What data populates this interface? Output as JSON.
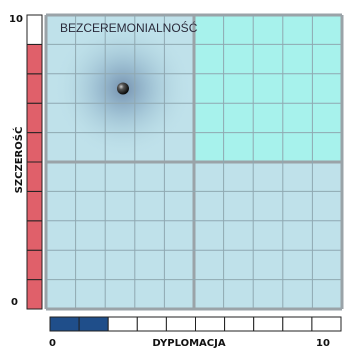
{
  "chart_data": {
    "type": "scatter",
    "title": "BEZCEREMONIALNOŚĆ",
    "xlabel": "DYPLOMACJA",
    "ylabel": "SZCZEROŚĆ",
    "xlim": [
      0,
      10
    ],
    "ylim": [
      0,
      10
    ],
    "x_tick_labels": [
      "0",
      "10"
    ],
    "y_tick_labels": [
      "0",
      "10"
    ],
    "grid": true,
    "grid_divisions": 10,
    "points": [
      {
        "x": 2.6,
        "y": 7.5
      }
    ],
    "y_scale_value": 9,
    "x_scale_value": 2,
    "colors": {
      "quadrant_default": "#bfe1ea",
      "quadrant_highlight": "#a7f2ec",
      "grid_minor": "#8fa8b1",
      "grid_major": "#9aa3a8",
      "y_scale_fill": "#e0606a",
      "x_scale_fill": "#1f4e8a",
      "point": "#1a1a1a"
    }
  }
}
